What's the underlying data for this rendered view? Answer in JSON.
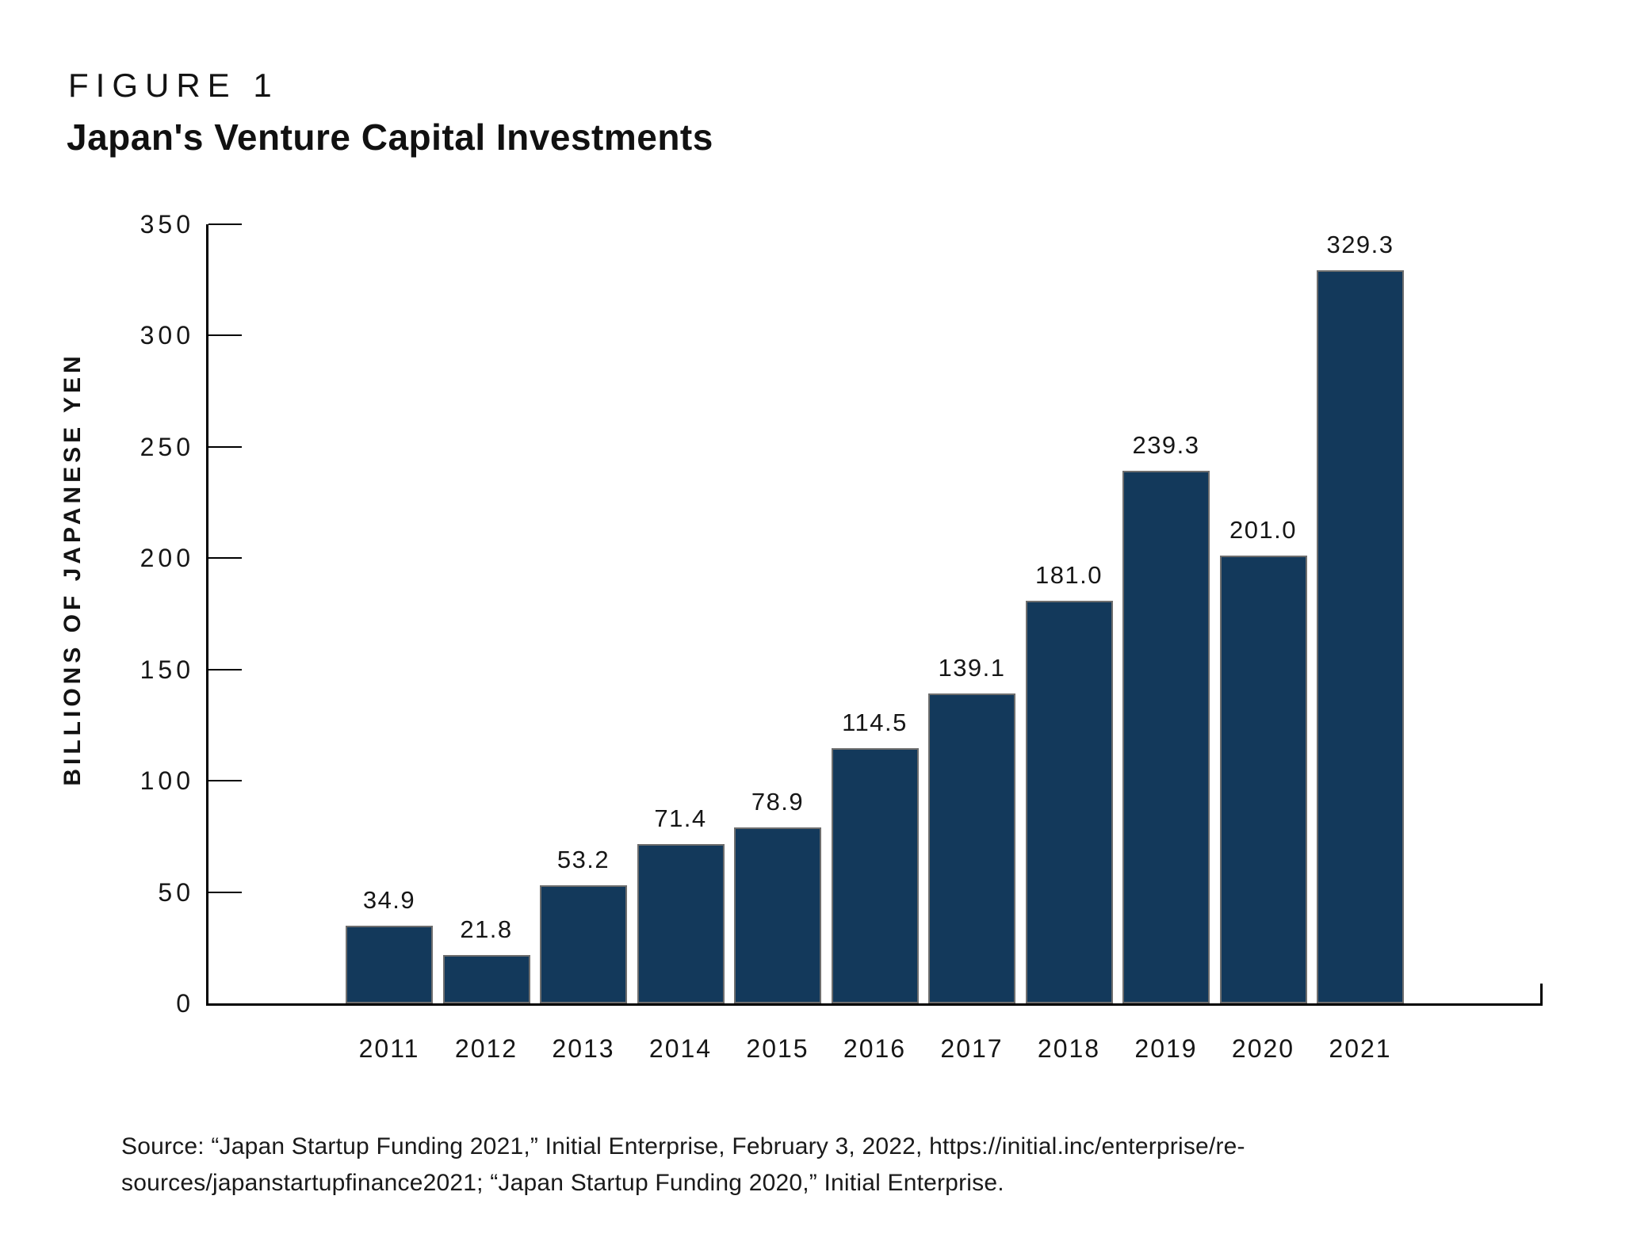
{
  "figure": {
    "label": "FIGURE 1",
    "title": "Japan's Venture Capital Investments"
  },
  "chart_data": {
    "type": "bar",
    "title": "Japan's Venture Capital Investments",
    "categories": [
      "2011",
      "2012",
      "2013",
      "2014",
      "2015",
      "2016",
      "2017",
      "2018",
      "2019",
      "2020",
      "2021"
    ],
    "values": [
      34.9,
      21.8,
      53.2,
      71.4,
      78.9,
      114.5,
      139.1,
      181.0,
      239.3,
      201.0,
      329.3
    ],
    "value_labels": [
      "34.9",
      "21.8",
      "53.2",
      "71.4",
      "78.9",
      "114.5",
      "139.1",
      "181.0",
      "239.3",
      "201.0",
      "329.3"
    ],
    "xlabel": "",
    "ylabel": "BILLIONS OF JAPANESE YEN",
    "ylim": [
      0,
      350
    ],
    "yticks": [
      0,
      50,
      100,
      150,
      200,
      250,
      300,
      350
    ],
    "ytick_labels": [
      "0",
      "50",
      "100",
      "150",
      "200",
      "250",
      "300",
      "350"
    ],
    "grid": false,
    "legend": "none",
    "bar_color": "#13395B",
    "bar_edge_color": "#6E6E6E",
    "axis_color": "#000000"
  },
  "source": {
    "lines": [
      "Source: “Japan Startup Funding 2021,” Initial Enterprise, February 3, 2022, https://initial.inc/enterprise/re-",
      "sources/japanstartupfinance2021; “Japan Startup Funding 2020,” Initial Enterprise."
    ]
  }
}
